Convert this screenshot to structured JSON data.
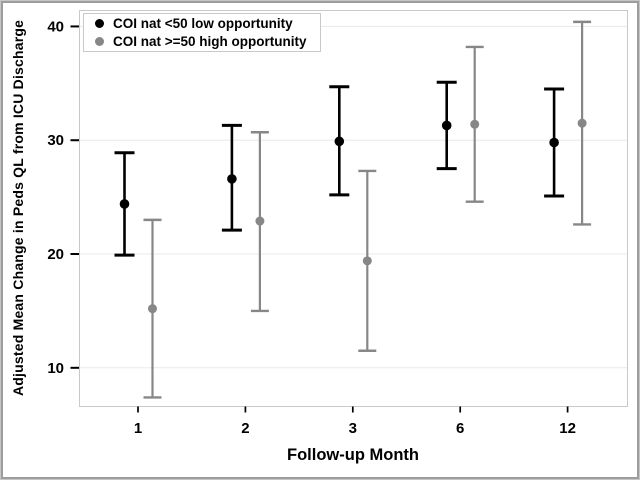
{
  "chart_data": {
    "type": "scatter",
    "subtype": "point-estimate-with-error-bars",
    "title": "",
    "xlabel": "Follow-up Month",
    "ylabel": "Adjusted Mean Change in Peds QL from ICU Discharge",
    "categories": [
      "1",
      "2",
      "3",
      "6",
      "12"
    ],
    "yticks": [
      10,
      20,
      30,
      40
    ],
    "ylim": [
      6.6,
      41.4
    ],
    "grid": "horizontal-only",
    "gridline_color": "#e8e8e8",
    "plot_border_color": "#c9c9c9",
    "legend_position": "top-left inside plot",
    "series": [
      {
        "name": "COI nat <50 low opportunity",
        "color": "#000000",
        "means": [
          24.4,
          26.6,
          29.9,
          31.3,
          29.8
        ],
        "ci_low": [
          19.9,
          22.1,
          25.2,
          27.5,
          25.1
        ],
        "ci_high": [
          28.9,
          31.3,
          34.7,
          35.1,
          34.5
        ]
      },
      {
        "name": "COI nat >=50 high opportunity",
        "color": "#878787",
        "means": [
          15.2,
          22.9,
          19.4,
          31.4,
          31.5
        ],
        "ci_low": [
          7.4,
          15.0,
          11.5,
          24.6,
          22.6
        ],
        "ci_high": [
          23.0,
          30.7,
          27.3,
          38.2,
          40.4
        ]
      }
    ]
  }
}
